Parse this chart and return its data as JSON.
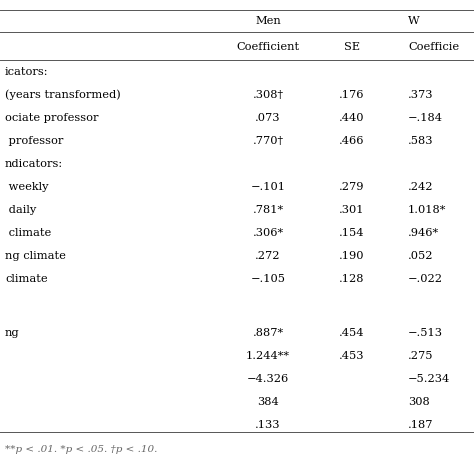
{
  "col_header1_men": "Men",
  "col_header1_w": "W",
  "col_header2_coeff": "Coefficient",
  "col_header2_se": "SE",
  "col_header2_wcoeff": "Coefficie",
  "rows": [
    [
      "icators:",
      "",
      "",
      ""
    ],
    [
      "(years transformed)",
      ".308†",
      ".176",
      ".373"
    ],
    [
      "ociate professor",
      ".073",
      ".440",
      "−.184"
    ],
    [
      " professor",
      ".770†",
      ".466",
      ".583"
    ],
    [
      "ndicators:",
      "",
      "",
      ""
    ],
    [
      " weekly",
      "−.101",
      ".279",
      ".242"
    ],
    [
      " daily",
      ".781*",
      ".301",
      "1.018*"
    ],
    [
      " climate",
      ".306*",
      ".154",
      ".946*"
    ],
    [
      "ng climate",
      ".272",
      ".190",
      ".052"
    ],
    [
      "climate",
      "−.105",
      ".128",
      "−.022"
    ],
    [
      "",
      "",
      "",
      ""
    ],
    [
      "ng",
      ".887*",
      ".454",
      "−.513"
    ],
    [
      "",
      "1.244**",
      ".453",
      ".275"
    ],
    [
      "",
      "−4.326",
      "",
      "−5.234"
    ],
    [
      "",
      "384",
      "",
      "308"
    ],
    [
      "",
      ".133",
      "",
      ".187"
    ]
  ],
  "footnote": "**p < .01. *p < .05. †p < .10.",
  "bg_color": "#ffffff",
  "text_color": "#000000"
}
